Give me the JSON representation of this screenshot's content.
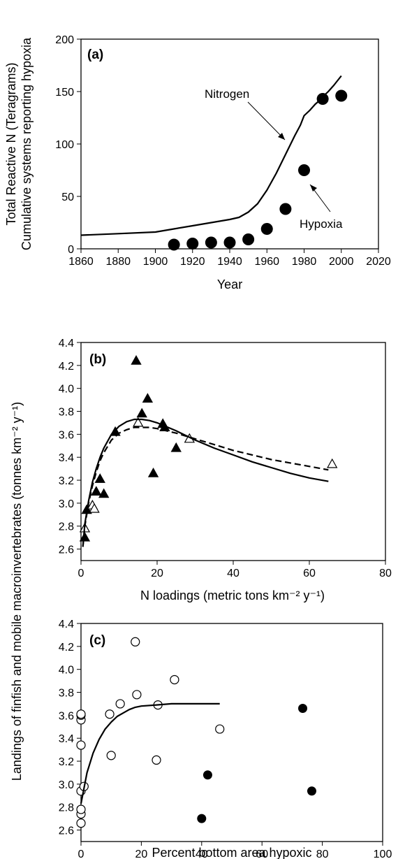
{
  "shared_ylabel": "Landings of finfish and mobile macroinvertebrates (tonnes km⁻² y⁻¹)",
  "chart_data": [
    {
      "panel": "(a)",
      "type": "line",
      "xlabel": "Year",
      "ylabel_lines": [
        "Total Reactive N (Teragrams)",
        "Cumulative systems reporting hypoxia"
      ],
      "xlim": [
        1860,
        2020
      ],
      "ylim": [
        0,
        200
      ],
      "x_ticks": [
        "1860",
        "1880",
        "1900",
        "1920",
        "1940",
        "1960",
        "1980",
        "2000",
        "2020"
      ],
      "y_ticks": [
        "0",
        "50",
        "100",
        "150",
        "200"
      ],
      "annotations": [
        "Nitrogen",
        "Hypoxia"
      ],
      "series": [
        {
          "name": "Nitrogen",
          "style": "line",
          "x": [
            1860,
            1880,
            1900,
            1910,
            1920,
            1930,
            1940,
            1945,
            1950,
            1955,
            1960,
            1965,
            1970,
            1975,
            1978,
            1980,
            1983,
            1986,
            1988,
            1990,
            1993,
            1996,
            2000
          ],
          "y": [
            13,
            14.5,
            16,
            19,
            22,
            25,
            28,
            30,
            35,
            43,
            56,
            72,
            90,
            108,
            118,
            127,
            132,
            138,
            141,
            145,
            150,
            156,
            165
          ]
        },
        {
          "name": "Hypoxia",
          "style": "marker-filled-circle",
          "x": [
            1910,
            1920,
            1930,
            1940,
            1950,
            1960,
            1970,
            1980,
            1990,
            2000
          ],
          "y": [
            4,
            5,
            6,
            6,
            9,
            19,
            38,
            75,
            143,
            146
          ]
        }
      ]
    },
    {
      "panel": "(b)",
      "type": "scatter",
      "xlabel": "N loadings (metric tons km⁻² y⁻¹)",
      "xlim": [
        0,
        80
      ],
      "ylim": [
        2.5,
        4.4
      ],
      "x_ticks": [
        "0",
        "20",
        "40",
        "60",
        "80"
      ],
      "y_ticks": [
        "2.6",
        "2.8",
        "3.0",
        "3.2",
        "3.4",
        "3.6",
        "3.8",
        "4.0",
        "4.2",
        "4.4"
      ],
      "series": [
        {
          "style": "marker-filled-triangle",
          "x": [
            1,
            1.5,
            4,
            5,
            6,
            9,
            14.5,
            16,
            17.5,
            19,
            21.5,
            22,
            25
          ],
          "y": [
            2.7,
            2.94,
            3.1,
            3.21,
            3.08,
            3.62,
            4.24,
            3.78,
            3.91,
            3.26,
            3.69,
            3.66,
            3.48
          ]
        },
        {
          "style": "marker-open-triangle",
          "x": [
            1,
            3,
            3.5,
            15,
            28.5,
            66
          ],
          "y": [
            2.78,
            2.98,
            2.95,
            3.7,
            3.56,
            3.34
          ]
        },
        {
          "style": "solid-line",
          "x": [
            0.5,
            1,
            2,
            3,
            4,
            5,
            6,
            8,
            10,
            12,
            14,
            16,
            18,
            20,
            25,
            30,
            35,
            40,
            45,
            50,
            55,
            60,
            65
          ],
          "y": [
            2.62,
            2.82,
            3.02,
            3.18,
            3.3,
            3.4,
            3.48,
            3.6,
            3.67,
            3.71,
            3.73,
            3.73,
            3.72,
            3.7,
            3.63,
            3.55,
            3.48,
            3.42,
            3.36,
            3.31,
            3.26,
            3.22,
            3.19
          ]
        },
        {
          "style": "dashed-line",
          "x": [
            0.5,
            1,
            2,
            3,
            4,
            5,
            6,
            8,
            10,
            12,
            14,
            16,
            18,
            20,
            25,
            30,
            35,
            40,
            45,
            50,
            55,
            60,
            65
          ],
          "y": [
            2.62,
            2.8,
            3.0,
            3.15,
            3.27,
            3.37,
            3.44,
            3.55,
            3.61,
            3.64,
            3.66,
            3.66,
            3.66,
            3.65,
            3.61,
            3.56,
            3.51,
            3.46,
            3.42,
            3.38,
            3.35,
            3.32,
            3.29
          ]
        }
      ]
    },
    {
      "panel": "(c)",
      "type": "scatter",
      "xlabel": "Percent bottom area hypoxic",
      "xlim": [
        0,
        100
      ],
      "ylim": [
        2.5,
        4.4
      ],
      "x_ticks": [
        "0",
        "20",
        "40",
        "60",
        "80",
        "100"
      ],
      "y_ticks": [
        "2.6",
        "2.8",
        "3.0",
        "3.2",
        "3.4",
        "3.6",
        "3.8",
        "4.0",
        "4.2",
        "4.4"
      ],
      "series": [
        {
          "style": "marker-open-circle",
          "x": [
            0,
            0,
            0,
            0,
            0,
            0,
            0,
            0,
            1,
            9.5,
            10,
            13,
            18,
            18.5,
            25,
            25.5,
            31,
            46
          ],
          "y": [
            2.66,
            2.74,
            2.78,
            2.94,
            3.34,
            3.56,
            3.6,
            3.61,
            2.98,
            3.61,
            3.25,
            3.7,
            4.24,
            3.78,
            3.21,
            3.69,
            3.91,
            3.48
          ]
        },
        {
          "style": "marker-filled-circle",
          "x": [
            40,
            42,
            73.5,
            76.5
          ],
          "y": [
            2.7,
            3.08,
            3.66,
            2.94
          ]
        },
        {
          "style": "solid-line",
          "x": [
            0,
            2,
            4,
            6,
            8,
            10,
            12,
            14,
            16,
            18,
            20,
            25,
            30,
            35,
            40,
            46
          ],
          "y": [
            2.83,
            3.1,
            3.27,
            3.39,
            3.48,
            3.54,
            3.59,
            3.62,
            3.65,
            3.67,
            3.68,
            3.69,
            3.7,
            3.7,
            3.7,
            3.7
          ]
        }
      ]
    }
  ]
}
